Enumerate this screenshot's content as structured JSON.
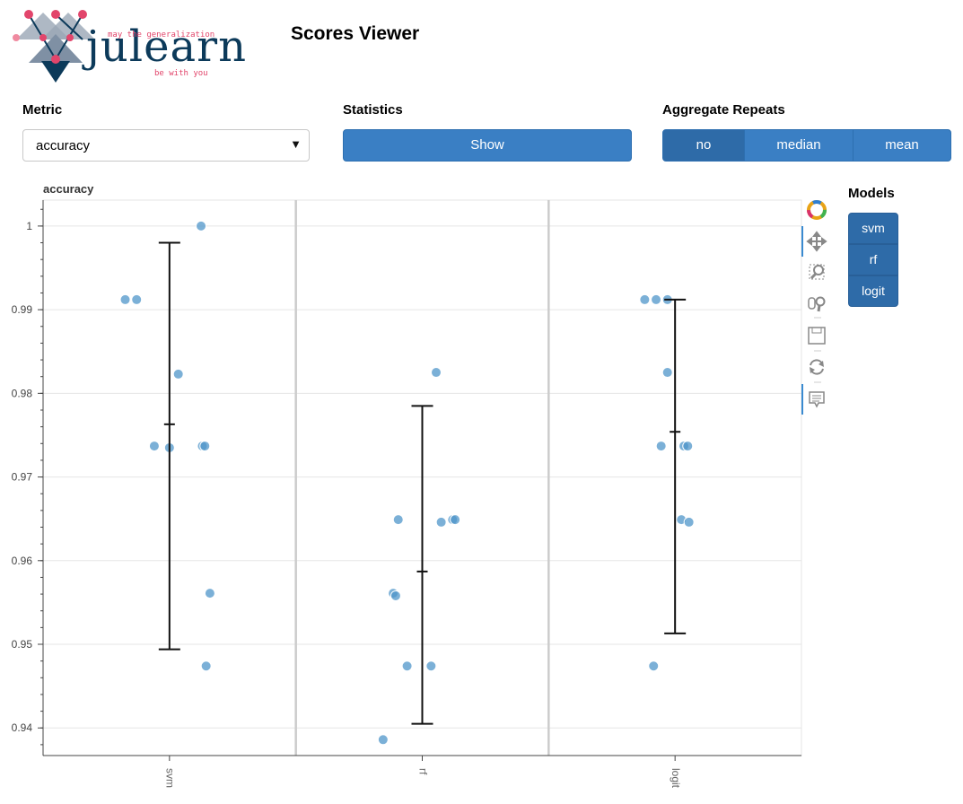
{
  "header": {
    "logo_text": "julearn",
    "logo_tag_top": "may the generalization",
    "logo_tag_bottom": "be with you",
    "title": "Scores Viewer"
  },
  "controls": {
    "metric_label": "Metric",
    "metric_value": "accuracy",
    "statistics_label": "Statistics",
    "statistics_button": "Show",
    "aggregate_label": "Aggregate Repeats",
    "aggregate_options": [
      "no",
      "median",
      "mean"
    ],
    "aggregate_selected": "no"
  },
  "models": {
    "label": "Models",
    "items": [
      "svm",
      "rf",
      "logit"
    ]
  },
  "toolbar": {
    "tools": [
      "bokeh-logo-icon",
      "pan-icon",
      "box-zoom-icon",
      "wheel-zoom-icon",
      "save-icon",
      "reset-icon",
      "hover-icon"
    ]
  },
  "colors": {
    "accent": "#3a7fc4",
    "accent_dark": "#2e6ba8",
    "point": "#4f95c9"
  },
  "chart_data": {
    "type": "scatter",
    "title": "accuracy",
    "xlabel": "",
    "ylabel": "",
    "categories": [
      "svm",
      "rf",
      "logit"
    ],
    "ylim": [
      0.9367,
      1.0031
    ],
    "yticks": [
      "1",
      "0.99",
      "0.98",
      "0.97",
      "0.96",
      "0.95",
      "0.94"
    ],
    "grid": true,
    "series": [
      {
        "category": "svm",
        "points": [
          [
            -0.35,
            0.9912
          ],
          [
            -0.26,
            0.9912
          ],
          [
            -0.12,
            0.9737
          ],
          [
            0.0,
            0.9735
          ],
          [
            0.07,
            0.9823
          ],
          [
            0.25,
            1.0
          ],
          [
            0.26,
            0.9737
          ],
          [
            0.28,
            0.9737
          ],
          [
            0.32,
            0.9561
          ],
          [
            0.29,
            0.9474
          ]
        ],
        "mean": 0.9763,
        "lower": 0.9494,
        "upper": 0.998
      },
      {
        "category": "rf",
        "points": [
          [
            -0.31,
            0.9386
          ],
          [
            -0.23,
            0.9561
          ],
          [
            -0.21,
            0.9558
          ],
          [
            -0.19,
            0.9649
          ],
          [
            -0.12,
            0.9474
          ],
          [
            0.07,
            0.9474
          ],
          [
            0.11,
            0.9825
          ],
          [
            0.15,
            0.9646
          ],
          [
            0.24,
            0.9649
          ],
          [
            0.26,
            0.9649
          ]
        ],
        "mean": 0.9587,
        "lower": 0.9405,
        "upper": 0.9785
      },
      {
        "category": "logit",
        "points": [
          [
            -0.24,
            0.9912
          ],
          [
            -0.15,
            0.9912
          ],
          [
            -0.06,
            0.9912
          ],
          [
            -0.17,
            0.9474
          ],
          [
            -0.11,
            0.9737
          ],
          [
            -0.06,
            0.9825
          ],
          [
            0.05,
            0.9649
          ],
          [
            0.07,
            0.9737
          ],
          [
            0.1,
            0.9737
          ],
          [
            0.11,
            0.9646
          ]
        ],
        "mean": 0.9754,
        "lower": 0.9513,
        "upper": 0.9912
      }
    ]
  }
}
